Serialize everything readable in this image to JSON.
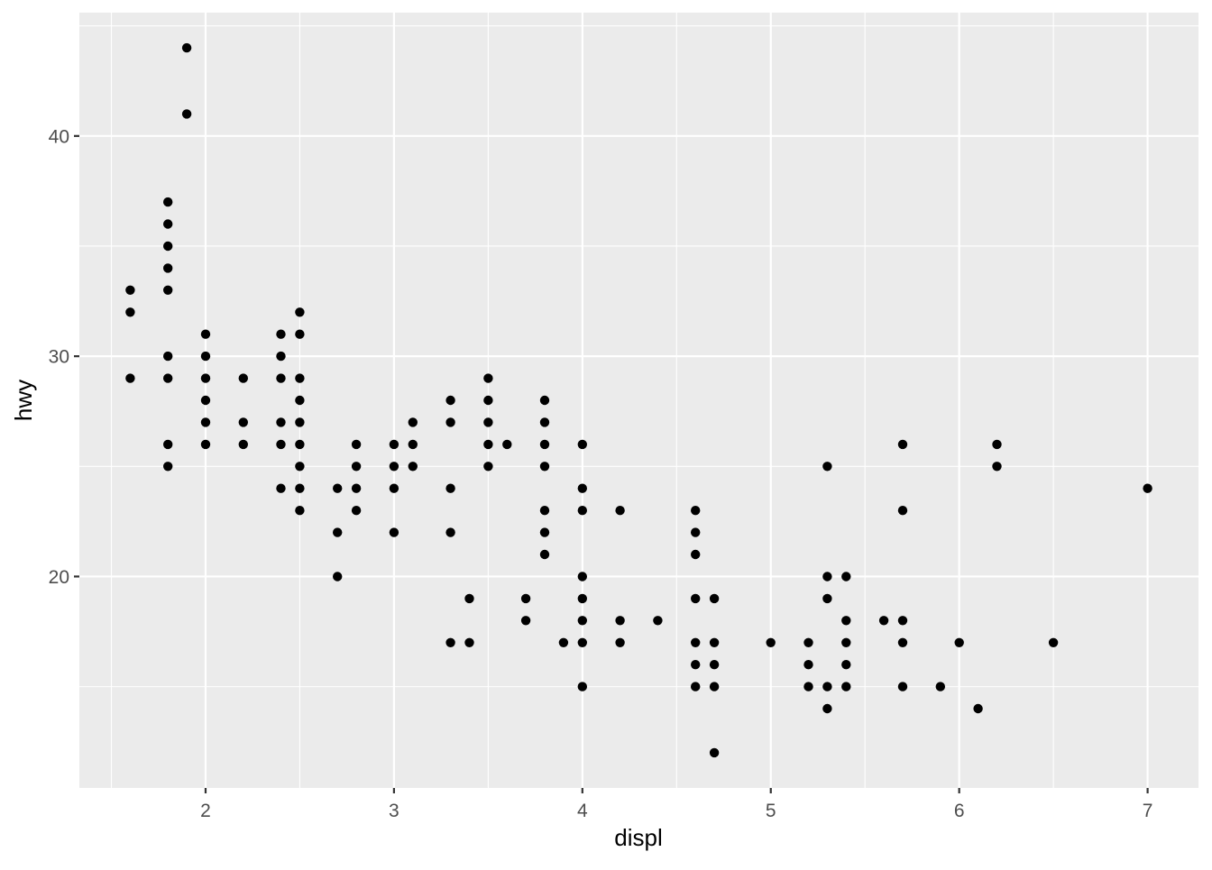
{
  "chart_data": {
    "type": "scatter",
    "title": "",
    "xlabel": "displ",
    "ylabel": "hwy",
    "xlim": [
      1.33,
      7.27
    ],
    "ylim": [
      10.4,
      45.6
    ],
    "x_ticks": [
      2,
      3,
      4,
      5,
      6,
      7
    ],
    "y_ticks": [
      20,
      30,
      40
    ],
    "x_minor_gridlines": [
      1.5,
      2.5,
      3.5,
      4.5,
      5.5,
      6.5
    ],
    "y_minor_gridlines": [
      15,
      25,
      35,
      45
    ],
    "grid": true,
    "legend": false,
    "style": {
      "panel_bg": "#EBEBEB",
      "gridline_color": "#FFFFFF",
      "point_color": "#000000",
      "tick_mark_color": "#333333",
      "tick_label_color": "#4D4D4D",
      "axis_title_color": "#000000"
    },
    "points": [
      [
        1.6,
        29
      ],
      [
        1.6,
        32
      ],
      [
        1.6,
        33
      ],
      [
        1.8,
        25
      ],
      [
        1.8,
        26
      ],
      [
        1.8,
        29
      ],
      [
        1.8,
        30
      ],
      [
        1.8,
        33
      ],
      [
        1.8,
        34
      ],
      [
        1.8,
        35
      ],
      [
        1.8,
        36
      ],
      [
        1.8,
        37
      ],
      [
        1.9,
        41
      ],
      [
        1.9,
        44
      ],
      [
        2.0,
        26
      ],
      [
        2.0,
        27
      ],
      [
        2.0,
        28
      ],
      [
        2.0,
        29
      ],
      [
        2.0,
        30
      ],
      [
        2.0,
        31
      ],
      [
        2.2,
        26
      ],
      [
        2.2,
        27
      ],
      [
        2.2,
        29
      ],
      [
        2.4,
        24
      ],
      [
        2.4,
        26
      ],
      [
        2.4,
        27
      ],
      [
        2.4,
        29
      ],
      [
        2.4,
        30
      ],
      [
        2.4,
        31
      ],
      [
        2.5,
        23
      ],
      [
        2.5,
        24
      ],
      [
        2.5,
        25
      ],
      [
        2.5,
        26
      ],
      [
        2.5,
        27
      ],
      [
        2.5,
        28
      ],
      [
        2.5,
        29
      ],
      [
        2.5,
        31
      ],
      [
        2.5,
        32
      ],
      [
        2.7,
        20
      ],
      [
        2.7,
        22
      ],
      [
        2.7,
        24
      ],
      [
        2.8,
        23
      ],
      [
        2.8,
        24
      ],
      [
        2.8,
        25
      ],
      [
        2.8,
        26
      ],
      [
        3.0,
        22
      ],
      [
        3.0,
        24
      ],
      [
        3.0,
        25
      ],
      [
        3.0,
        26
      ],
      [
        3.1,
        25
      ],
      [
        3.1,
        26
      ],
      [
        3.1,
        27
      ],
      [
        3.3,
        17
      ],
      [
        3.3,
        22
      ],
      [
        3.3,
        24
      ],
      [
        3.3,
        27
      ],
      [
        3.3,
        28
      ],
      [
        3.4,
        17
      ],
      [
        3.4,
        19
      ],
      [
        3.5,
        25
      ],
      [
        3.5,
        26
      ],
      [
        3.5,
        27
      ],
      [
        3.5,
        28
      ],
      [
        3.5,
        29
      ],
      [
        3.6,
        26
      ],
      [
        3.7,
        18
      ],
      [
        3.7,
        19
      ],
      [
        3.8,
        21
      ],
      [
        3.8,
        22
      ],
      [
        3.8,
        23
      ],
      [
        3.8,
        25
      ],
      [
        3.8,
        26
      ],
      [
        3.8,
        27
      ],
      [
        3.8,
        28
      ],
      [
        3.9,
        17
      ],
      [
        4.0,
        15
      ],
      [
        4.0,
        17
      ],
      [
        4.0,
        18
      ],
      [
        4.0,
        19
      ],
      [
        4.0,
        20
      ],
      [
        4.0,
        23
      ],
      [
        4.0,
        24
      ],
      [
        4.0,
        26
      ],
      [
        4.2,
        17
      ],
      [
        4.2,
        18
      ],
      [
        4.2,
        23
      ],
      [
        4.4,
        18
      ],
      [
        4.6,
        15
      ],
      [
        4.6,
        16
      ],
      [
        4.6,
        17
      ],
      [
        4.6,
        19
      ],
      [
        4.6,
        21
      ],
      [
        4.6,
        22
      ],
      [
        4.6,
        23
      ],
      [
        4.7,
        12
      ],
      [
        4.7,
        15
      ],
      [
        4.7,
        16
      ],
      [
        4.7,
        17
      ],
      [
        4.7,
        19
      ],
      [
        5.0,
        17
      ],
      [
        5.2,
        15
      ],
      [
        5.2,
        16
      ],
      [
        5.2,
        17
      ],
      [
        5.3,
        14
      ],
      [
        5.3,
        15
      ],
      [
        5.3,
        19
      ],
      [
        5.3,
        20
      ],
      [
        5.3,
        25
      ],
      [
        5.4,
        15
      ],
      [
        5.4,
        16
      ],
      [
        5.4,
        17
      ],
      [
        5.4,
        18
      ],
      [
        5.4,
        20
      ],
      [
        5.6,
        18
      ],
      [
        5.7,
        15
      ],
      [
        5.7,
        17
      ],
      [
        5.7,
        18
      ],
      [
        5.7,
        23
      ],
      [
        5.7,
        26
      ],
      [
        5.9,
        15
      ],
      [
        6.0,
        17
      ],
      [
        6.1,
        14
      ],
      [
        6.2,
        25
      ],
      [
        6.2,
        26
      ],
      [
        6.5,
        17
      ],
      [
        7.0,
        24
      ]
    ]
  }
}
